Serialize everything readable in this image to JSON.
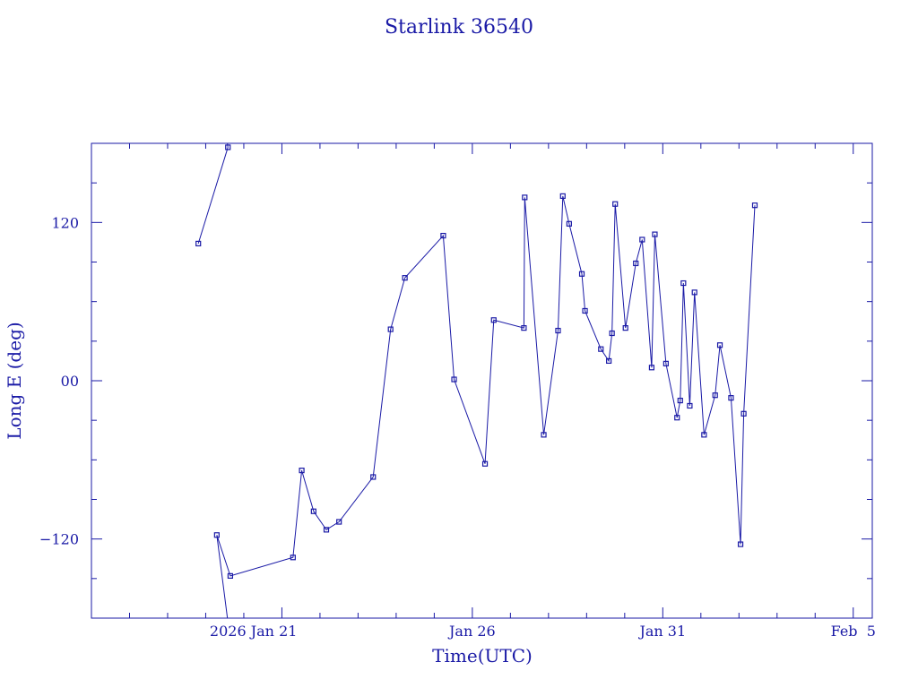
{
  "chart_data": {
    "type": "line",
    "title": "Starlink 36540",
    "xlabel": "Time(UTC)",
    "ylabel": "Long E (deg)",
    "x_unit": "days",
    "xlim": [
      "2026-01-16T00:00",
      "2026-02-05T12:00"
    ],
    "ylim": [
      -180,
      180
    ],
    "y_ticks": [
      {
        "value": 120,
        "label": "120"
      },
      {
        "value": 0,
        "label": "00"
      },
      {
        "value": -120,
        "label": "−120"
      }
    ],
    "x_ticks": [
      {
        "value": "2026-01-21",
        "label": "2026 Jan 21"
      },
      {
        "value": "2026-01-26",
        "label": "Jan 26"
      },
      {
        "value": "2026-01-31",
        "label": "Jan 31"
      },
      {
        "value": "2026-02-05",
        "label": "Feb  5"
      }
    ],
    "wrap_longitude": true,
    "color": "#1a1aa6",
    "grid": false,
    "series": [
      {
        "points": [
          {
            "t": "2026-01-18T19:20",
            "lon": 104
          },
          {
            "t": "2026-01-19T14:00",
            "lon": 177
          },
          {
            "t": "2026-01-19T07:00",
            "lon": -117
          },
          {
            "t": "2026-01-19T15:30",
            "lon": -148
          },
          {
            "t": "2026-01-21T07:00",
            "lon": -134
          },
          {
            "t": "2026-01-21T12:30",
            "lon": -68
          },
          {
            "t": "2026-01-21T20:00",
            "lon": -99
          },
          {
            "t": "2026-01-22T04:00",
            "lon": -113
          },
          {
            "t": "2026-01-22T12:00",
            "lon": -107
          },
          {
            "t": "2026-01-23T09:30",
            "lon": -73
          },
          {
            "t": "2026-01-23T20:30",
            "lon": 39
          },
          {
            "t": "2026-01-24T05:30",
            "lon": 78
          },
          {
            "t": "2026-01-25T05:40",
            "lon": 110
          },
          {
            "t": "2026-01-25T12:30",
            "lon": 1
          },
          {
            "t": "2026-01-26T08:00",
            "lon": -63
          },
          {
            "t": "2026-01-26T13:30",
            "lon": 46
          },
          {
            "t": "2026-01-27T08:30",
            "lon": 40
          },
          {
            "t": "2026-01-27T09:00",
            "lon": 139
          },
          {
            "t": "2026-01-27T21:00",
            "lon": -41
          },
          {
            "t": "2026-01-28T06:00",
            "lon": 38
          },
          {
            "t": "2026-01-28T09:00",
            "lon": 140
          },
          {
            "t": "2026-01-28T13:00",
            "lon": 119
          },
          {
            "t": "2026-01-28T21:00",
            "lon": 81
          },
          {
            "t": "2026-01-28T23:00",
            "lon": 53
          },
          {
            "t": "2026-01-29T09:00",
            "lon": 24
          },
          {
            "t": "2026-01-29T14:00",
            "lon": 15
          },
          {
            "t": "2026-01-29T16:00",
            "lon": 36
          },
          {
            "t": "2026-01-29T18:00",
            "lon": 134
          },
          {
            "t": "2026-01-30T00:30",
            "lon": 40
          },
          {
            "t": "2026-01-30T07:00",
            "lon": 89
          },
          {
            "t": "2026-01-30T11:00",
            "lon": 107
          },
          {
            "t": "2026-01-30T17:00",
            "lon": 10
          },
          {
            "t": "2026-01-30T19:00",
            "lon": 111
          },
          {
            "t": "2026-01-31T02:00",
            "lon": 13
          },
          {
            "t": "2026-01-31T09:00",
            "lon": -28
          },
          {
            "t": "2026-01-31T11:00",
            "lon": -15
          },
          {
            "t": "2026-01-31T13:00",
            "lon": 74
          },
          {
            "t": "2026-01-31T17:00",
            "lon": -19
          },
          {
            "t": "2026-01-31T20:00",
            "lon": 67
          },
          {
            "t": "2026-02-01T02:00",
            "lon": -41
          },
          {
            "t": "2026-02-01T09:00",
            "lon": -11
          },
          {
            "t": "2026-02-01T12:00",
            "lon": 27
          },
          {
            "t": "2026-02-01T19:00",
            "lon": -13
          },
          {
            "t": "2026-02-02T01:00",
            "lon": -124
          },
          {
            "t": "2026-02-02T03:00",
            "lon": -25
          },
          {
            "t": "2026-02-02T10:00",
            "lon": 133
          }
        ]
      }
    ]
  }
}
